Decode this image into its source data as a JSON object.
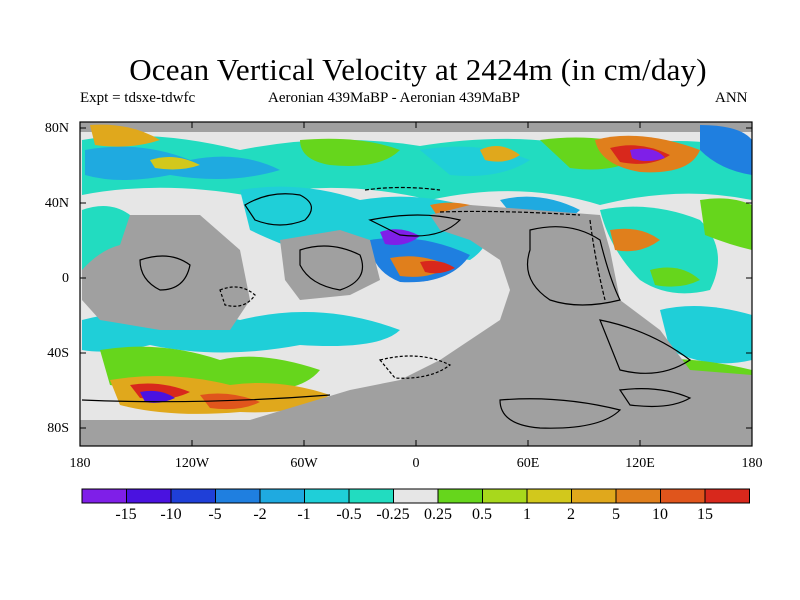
{
  "title": "Ocean Vertical Velocity at 2424m (in cm/day)",
  "subtitle_left": "Expt = tdsxe-tdwfc",
  "subtitle_center": "Aeronian 439MaBP - Aeronian 439MaBP",
  "subtitle_right": "ANN",
  "y_ticks": [
    "80N",
    "40N",
    "0",
    "40S",
    "80S"
  ],
  "x_ticks": [
    "180",
    "120W",
    "60W",
    "0",
    "60E",
    "120E",
    "180"
  ],
  "colorbar": {
    "labels": [
      "-15",
      "-10",
      "-5",
      "-2",
      "-1",
      "-0.5",
      "-0.25",
      "0.25",
      "0.5",
      "1",
      "2",
      "5",
      "10",
      "15"
    ],
    "colors": [
      "#7f1fe8",
      "#4a12e0",
      "#1f3fd8",
      "#1f7fe0",
      "#1faae0",
      "#1fcfd8",
      "#22dcc0",
      "#e6e6e6",
      "#66d61c",
      "#a8d81c",
      "#d2c81c",
      "#e0a81c",
      "#e07f1c",
      "#e0551c",
      "#d8281c"
    ]
  },
  "land_color": "#a0a0a0"
}
